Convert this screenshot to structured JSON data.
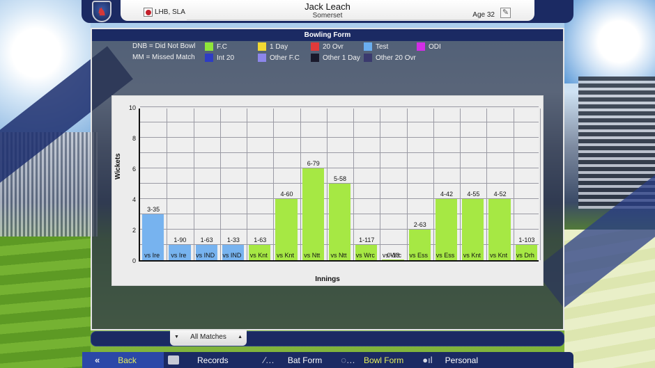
{
  "header": {
    "player_name": "Jack Leach",
    "team": "Somerset",
    "style": "LHB, SLA",
    "age": "Age 32",
    "crest_glyph": "♞",
    "edit_glyph": "✎"
  },
  "panel": {
    "title": "Bowling Form"
  },
  "legend": {
    "notes": [
      "DNB = Did Not Bowl",
      "MM = Missed Match"
    ],
    "items": [
      {
        "label": "F.C",
        "color": "#8fe63a"
      },
      {
        "label": "1 Day",
        "color": "#f2d933"
      },
      {
        "label": "20 Ovr",
        "color": "#e03a3a"
      },
      {
        "label": "Test",
        "color": "#6aaef0"
      },
      {
        "label": "ODI",
        "color": "#d22ee6"
      },
      {
        "label": "Int 20",
        "color": "#2e3cc4"
      },
      {
        "label": "Other F.C",
        "color": "#8c86ea"
      },
      {
        "label": "Other 1 Day",
        "color": "#1a1a2c"
      },
      {
        "label": "Other 20 Ovr",
        "color": "#3a3a6e"
      }
    ]
  },
  "chart_data": {
    "type": "bar",
    "title": "Bowling Form",
    "xlabel": "Innings",
    "ylabel": "Wickets",
    "ylim": [
      0,
      10
    ],
    "yticks": [
      0,
      2,
      4,
      6,
      8,
      10
    ],
    "grid": true,
    "categories": [
      "vs Ire",
      "vs Ire",
      "vs IND",
      "vs IND",
      "vs Knt",
      "vs Knt",
      "vs Ntt",
      "vs Ntt",
      "vs Wrc",
      "vs Wrc",
      "vs Ess",
      "vs Ess",
      "vs Knt",
      "vs Knt",
      "vs Drh"
    ],
    "values": [
      3,
      1,
      1,
      1,
      1,
      4,
      6,
      5,
      1,
      0,
      2,
      4,
      4,
      4,
      1
    ],
    "data_labels": [
      "3-35",
      "1-90",
      "1-63",
      "1-33",
      "1-63",
      "4-60",
      "6-79",
      "5-58",
      "1-117",
      "0-13",
      "2-63",
      "4-42",
      "4-55",
      "4-52",
      "1-103"
    ],
    "match_types": [
      "Test",
      "Test",
      "Test",
      "Test",
      "F.C",
      "F.C",
      "F.C",
      "F.C",
      "F.C",
      "F.C",
      "F.C",
      "F.C",
      "F.C",
      "F.C",
      "F.C"
    ],
    "colors": {
      "Test": "#77b3ef",
      "F.C": "#a6e844"
    }
  },
  "filter": {
    "selected": "All Matches",
    "down_glyph": "▼",
    "up_glyph": "▲"
  },
  "nav": {
    "back": {
      "label": "Back",
      "icon": "«"
    },
    "records": {
      "label": "Records"
    },
    "bat_form": {
      "label": "Bat Form",
      "icon": "⁄…"
    },
    "bowl_form": {
      "label": "Bowl Form",
      "icon": "◌…"
    },
    "personal": {
      "label": "Personal",
      "icon": "●ıl"
    }
  }
}
